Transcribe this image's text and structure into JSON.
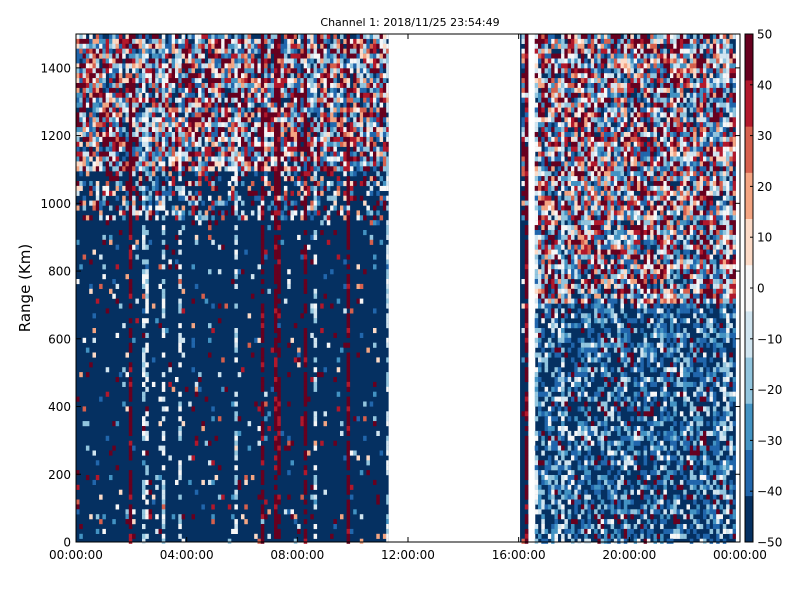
{
  "chart_data": {
    "type": "heatmap",
    "title": "Channel 1: 2018/11/25 23:54:49",
    "xlabel": "",
    "ylabel": "Range (Km)",
    "x_ticks": [
      "00:00:00",
      "04:00:00",
      "08:00:00",
      "12:00:00",
      "16:00:00",
      "20:00:00",
      "00:00:00"
    ],
    "x_range_hours": [
      0,
      24
    ],
    "ylim": [
      0,
      1500
    ],
    "y_ticks": [
      0,
      200,
      400,
      600,
      800,
      1000,
      1200,
      1400
    ],
    "colorbar": {
      "ticks": [
        50,
        40,
        30,
        20,
        10,
        0,
        -10,
        -20,
        -30,
        -40,
        -50
      ],
      "range": [
        -50,
        50
      ],
      "colormap": "RdBu_r",
      "colors": [
        "#053061",
        "#2166ac",
        "#4393c3",
        "#92c5de",
        "#d1e5f0",
        "#f7f7f7",
        "#fddbc7",
        "#f4a582",
        "#d6604d",
        "#b2182b",
        "#67001f"
      ]
    },
    "data_segments_hours": [
      [
        0,
        11.3
      ],
      [
        16.05,
        16.35
      ],
      [
        16.6,
        23.85
      ]
    ],
    "grid": false
  }
}
